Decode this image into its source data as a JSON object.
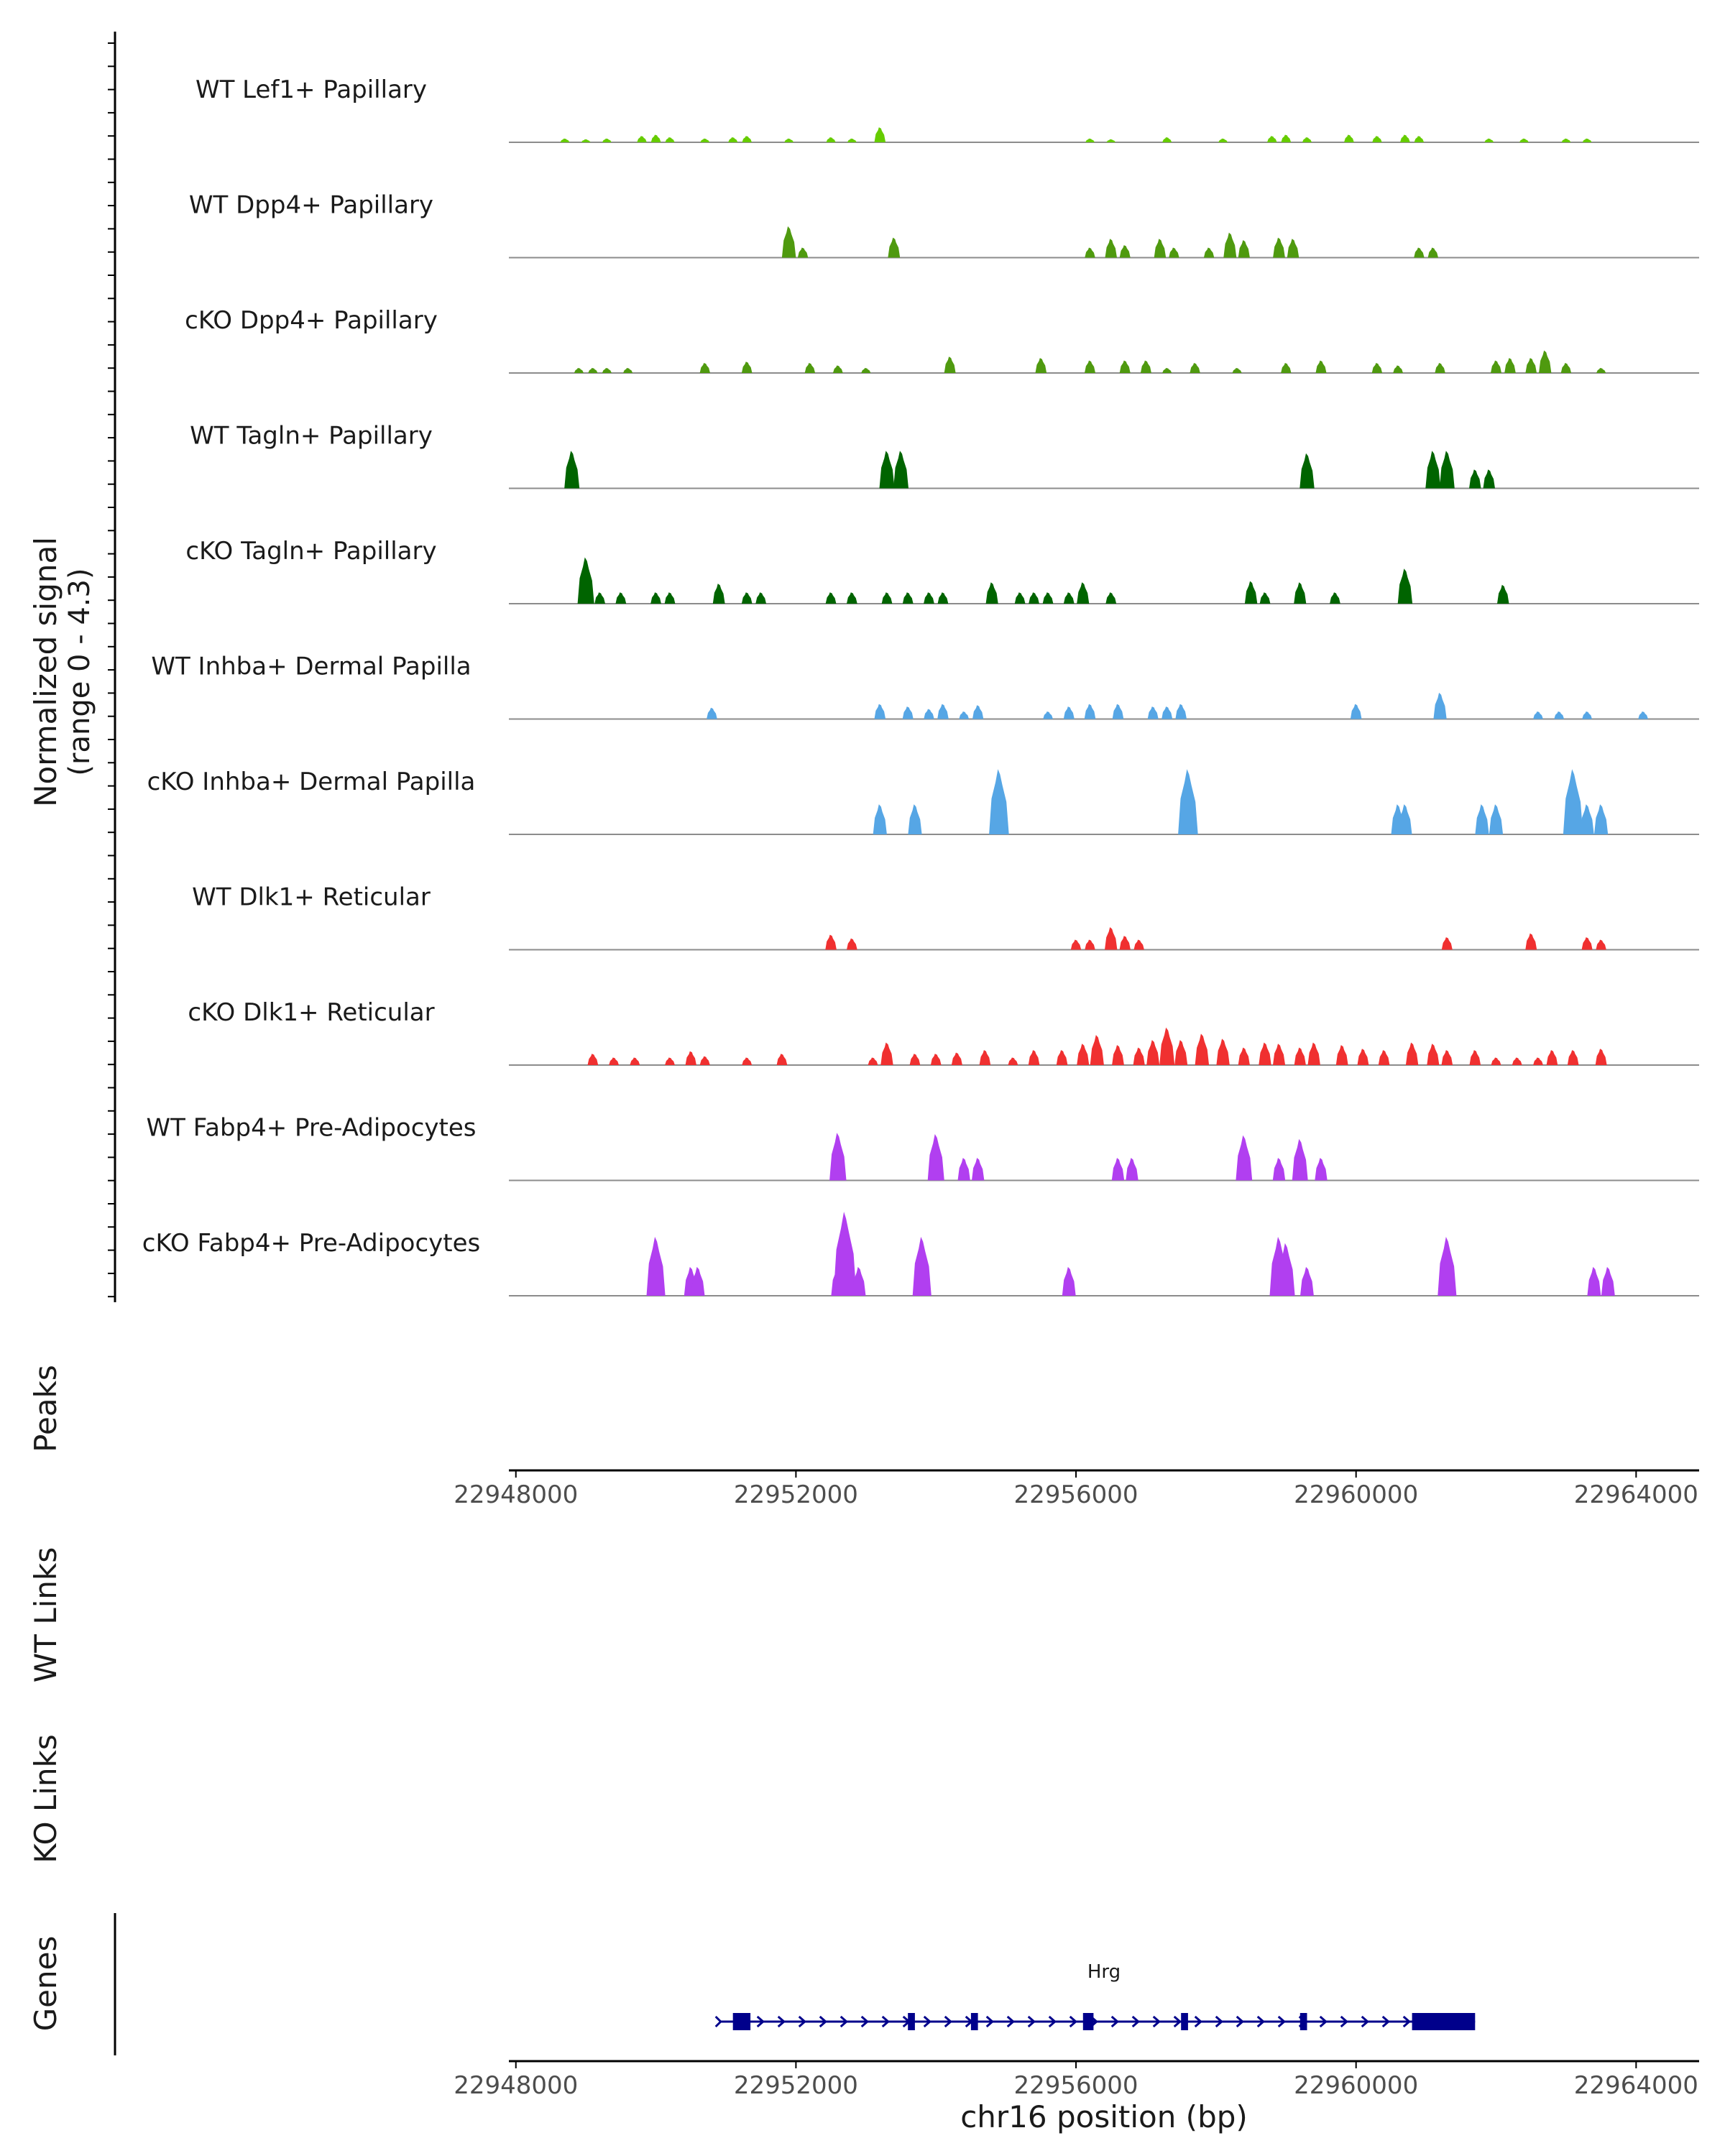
{
  "chart_data": {
    "type": "area",
    "title": "",
    "ylabel": "Normalized signal\n(range 0 - 4.3)",
    "xlabel": "chr16 position (bp)",
    "xlim": [
      22947900,
      22964900
    ],
    "ylim": [
      0,
      4.3
    ],
    "x_ticks": [
      {
        "value": 22948000,
        "label": "22948000"
      },
      {
        "value": 22952000,
        "label": "22952000"
      },
      {
        "value": 22956000,
        "label": "22956000"
      },
      {
        "value": 22960000,
        "label": "22960000"
      },
      {
        "value": 22964000,
        "label": "22964000"
      }
    ],
    "tracks": [
      {
        "name": "WT Lef1+ Papillary",
        "color": "#66cc00",
        "peaks": [
          [
            22948700,
            0.15
          ],
          [
            22949000,
            0.12
          ],
          [
            22949300,
            0.15
          ],
          [
            22949800,
            0.25
          ],
          [
            22950000,
            0.3
          ],
          [
            22950200,
            0.2
          ],
          [
            22950700,
            0.15
          ],
          [
            22951100,
            0.2
          ],
          [
            22951300,
            0.25
          ],
          [
            22951900,
            0.15
          ],
          [
            22952500,
            0.2
          ],
          [
            22952800,
            0.15
          ],
          [
            22953200,
            0.6
          ],
          [
            22956200,
            0.15
          ],
          [
            22956500,
            0.12
          ],
          [
            22957300,
            0.2
          ],
          [
            22958100,
            0.15
          ],
          [
            22958800,
            0.25
          ],
          [
            22959000,
            0.3
          ],
          [
            22959300,
            0.2
          ],
          [
            22959900,
            0.3
          ],
          [
            22960300,
            0.25
          ],
          [
            22960700,
            0.3
          ],
          [
            22960900,
            0.25
          ],
          [
            22961900,
            0.15
          ],
          [
            22962400,
            0.15
          ],
          [
            22963000,
            0.15
          ],
          [
            22963300,
            0.15
          ]
        ]
      },
      {
        "name": "WT Dpp4+ Papillary",
        "color": "#4f9a0f",
        "peaks": [
          [
            22951900,
            1.25
          ],
          [
            22952100,
            0.4
          ],
          [
            22953400,
            0.8
          ],
          [
            22956200,
            0.4
          ],
          [
            22956500,
            0.75
          ],
          [
            22956700,
            0.5
          ],
          [
            22957200,
            0.75
          ],
          [
            22957400,
            0.4
          ],
          [
            22957900,
            0.4
          ],
          [
            22958200,
            1.0
          ],
          [
            22958400,
            0.7
          ],
          [
            22958900,
            0.8
          ],
          [
            22959100,
            0.75
          ],
          [
            22960900,
            0.4
          ],
          [
            22961100,
            0.4
          ]
        ]
      },
      {
        "name": "cKO Dpp4+ Papillary",
        "color": "#4f9a0f",
        "peaks": [
          [
            22948900,
            0.2
          ],
          [
            22949100,
            0.2
          ],
          [
            22949300,
            0.2
          ],
          [
            22949600,
            0.2
          ],
          [
            22950700,
            0.4
          ],
          [
            22951300,
            0.45
          ],
          [
            22952200,
            0.4
          ],
          [
            22952600,
            0.3
          ],
          [
            22953000,
            0.2
          ],
          [
            22954200,
            0.65
          ],
          [
            22955500,
            0.6
          ],
          [
            22956200,
            0.5
          ],
          [
            22956700,
            0.5
          ],
          [
            22957000,
            0.5
          ],
          [
            22957300,
            0.2
          ],
          [
            22957700,
            0.4
          ],
          [
            22958300,
            0.2
          ],
          [
            22959000,
            0.4
          ],
          [
            22959500,
            0.5
          ],
          [
            22960300,
            0.4
          ],
          [
            22960600,
            0.3
          ],
          [
            22961200,
            0.4
          ],
          [
            22962000,
            0.5
          ],
          [
            22962200,
            0.6
          ],
          [
            22962500,
            0.6
          ],
          [
            22962700,
            0.9
          ],
          [
            22963000,
            0.4
          ],
          [
            22963500,
            0.2
          ]
        ]
      },
      {
        "name": "WT Tagln+ Papillary",
        "color": "#006400",
        "peaks": [
          [
            22948800,
            1.5
          ],
          [
            22953300,
            1.5
          ],
          [
            22953500,
            1.5
          ],
          [
            22959300,
            1.4
          ],
          [
            22961100,
            1.5
          ],
          [
            22961300,
            1.5
          ],
          [
            22961700,
            0.75
          ],
          [
            22961900,
            0.75
          ]
        ]
      },
      {
        "name": "cKO Tagln+ Papillary",
        "color": "#006400",
        "peaks": [
          [
            22949000,
            1.85
          ],
          [
            22949200,
            0.45
          ],
          [
            22949500,
            0.45
          ],
          [
            22950000,
            0.45
          ],
          [
            22950200,
            0.45
          ],
          [
            22950900,
            0.8
          ],
          [
            22951300,
            0.45
          ],
          [
            22951500,
            0.45
          ],
          [
            22952500,
            0.45
          ],
          [
            22952800,
            0.45
          ],
          [
            22953300,
            0.45
          ],
          [
            22953600,
            0.45
          ],
          [
            22953900,
            0.45
          ],
          [
            22954100,
            0.45
          ],
          [
            22954800,
            0.85
          ],
          [
            22955200,
            0.45
          ],
          [
            22955400,
            0.45
          ],
          [
            22955600,
            0.45
          ],
          [
            22955900,
            0.45
          ],
          [
            22956100,
            0.85
          ],
          [
            22956500,
            0.45
          ],
          [
            22958500,
            0.9
          ],
          [
            22958700,
            0.45
          ],
          [
            22959200,
            0.85
          ],
          [
            22959700,
            0.45
          ],
          [
            22960700,
            1.4
          ],
          [
            22962100,
            0.75
          ]
        ]
      },
      {
        "name": "WT Inhba+ Dermal Papilla",
        "color": "#56a6e5",
        "peaks": [
          [
            22950800,
            0.45
          ],
          [
            22953200,
            0.6
          ],
          [
            22953600,
            0.5
          ],
          [
            22953900,
            0.4
          ],
          [
            22954100,
            0.6
          ],
          [
            22954400,
            0.3
          ],
          [
            22954600,
            0.55
          ],
          [
            22955600,
            0.3
          ],
          [
            22955900,
            0.5
          ],
          [
            22956200,
            0.6
          ],
          [
            22956600,
            0.6
          ],
          [
            22957100,
            0.5
          ],
          [
            22957300,
            0.5
          ],
          [
            22957500,
            0.6
          ],
          [
            22960000,
            0.6
          ],
          [
            22961200,
            1.05
          ],
          [
            22962600,
            0.3
          ],
          [
            22962900,
            0.3
          ],
          [
            22963300,
            0.3
          ],
          [
            22964100,
            0.3
          ]
        ]
      },
      {
        "name": "cKO Inhba+ Dermal Papilla",
        "color": "#56a6e5",
        "peaks": [
          [
            22953200,
            1.2
          ],
          [
            22953700,
            1.2
          ],
          [
            22954900,
            2.6
          ],
          [
            22957600,
            2.6
          ],
          [
            22960600,
            1.2
          ],
          [
            22960700,
            1.2
          ],
          [
            22961800,
            1.2
          ],
          [
            22962000,
            1.2
          ],
          [
            22963100,
            2.6
          ],
          [
            22963300,
            1.2
          ],
          [
            22963500,
            1.2
          ]
        ]
      },
      {
        "name": "WT Dlk1+ Reticular",
        "color": "#f03030",
        "peaks": [
          [
            22952500,
            0.6
          ],
          [
            22952800,
            0.45
          ],
          [
            22956000,
            0.4
          ],
          [
            22956200,
            0.4
          ],
          [
            22956500,
            0.9
          ],
          [
            22956700,
            0.55
          ],
          [
            22956900,
            0.4
          ],
          [
            22961300,
            0.5
          ],
          [
            22962500,
            0.65
          ],
          [
            22963300,
            0.5
          ],
          [
            22963500,
            0.4
          ]
        ]
      },
      {
        "name": "cKO Dlk1+ Reticular",
        "color": "#f03030",
        "peaks": [
          [
            22949100,
            0.45
          ],
          [
            22949400,
            0.3
          ],
          [
            22949700,
            0.3
          ],
          [
            22950200,
            0.3
          ],
          [
            22950500,
            0.55
          ],
          [
            22950700,
            0.35
          ],
          [
            22951300,
            0.3
          ],
          [
            22951800,
            0.45
          ],
          [
            22953100,
            0.3
          ],
          [
            22953300,
            0.9
          ],
          [
            22953700,
            0.45
          ],
          [
            22954000,
            0.45
          ],
          [
            22954300,
            0.5
          ],
          [
            22954700,
            0.6
          ],
          [
            22955100,
            0.3
          ],
          [
            22955400,
            0.6
          ],
          [
            22955800,
            0.6
          ],
          [
            22956100,
            0.85
          ],
          [
            22956300,
            1.2
          ],
          [
            22956600,
            0.8
          ],
          [
            22956900,
            0.7
          ],
          [
            22957100,
            1.0
          ],
          [
            22957300,
            1.5
          ],
          [
            22957500,
            1.0
          ],
          [
            22957800,
            1.25
          ],
          [
            22958100,
            1.05
          ],
          [
            22958400,
            0.7
          ],
          [
            22958700,
            0.9
          ],
          [
            22958900,
            0.85
          ],
          [
            22959200,
            0.7
          ],
          [
            22959400,
            0.9
          ],
          [
            22959800,
            0.8
          ],
          [
            22960100,
            0.65
          ],
          [
            22960400,
            0.6
          ],
          [
            22960800,
            0.9
          ],
          [
            22961100,
            0.85
          ],
          [
            22961300,
            0.6
          ],
          [
            22961700,
            0.6
          ],
          [
            22962000,
            0.3
          ],
          [
            22962300,
            0.3
          ],
          [
            22962600,
            0.3
          ],
          [
            22962800,
            0.6
          ],
          [
            22963100,
            0.6
          ],
          [
            22963500,
            0.65
          ]
        ]
      },
      {
        "name": "WT Fabp4+ Pre-Adipocytes",
        "color": "#b13ff0",
        "peaks": [
          [
            22952600,
            1.9
          ],
          [
            22954000,
            1.85
          ],
          [
            22954400,
            0.9
          ],
          [
            22954600,
            0.9
          ],
          [
            22956600,
            0.9
          ],
          [
            22956800,
            0.9
          ],
          [
            22958400,
            1.8
          ],
          [
            22958900,
            0.9
          ],
          [
            22959200,
            1.65
          ],
          [
            22959500,
            0.9
          ]
        ]
      },
      {
        "name": "cKO Fabp4+ Pre-Adipocytes",
        "color": "#b13ff0",
        "peaks": [
          [
            22950000,
            2.35
          ],
          [
            22950500,
            1.15
          ],
          [
            22950600,
            1.15
          ],
          [
            22952600,
            1.15
          ],
          [
            22952700,
            3.35
          ],
          [
            22952900,
            1.15
          ],
          [
            22953800,
            2.35
          ],
          [
            22955900,
            1.15
          ],
          [
            22958900,
            2.35
          ],
          [
            22959000,
            2.1
          ],
          [
            22959300,
            1.15
          ],
          [
            22961300,
            2.35
          ],
          [
            22963400,
            1.15
          ],
          [
            22963600,
            1.15
          ]
        ]
      }
    ],
    "panels": {
      "peaks_label": "Peaks",
      "wt_links_label": "WT Links",
      "ko_links_label": "KO Links",
      "genes_label": "Genes"
    },
    "gene": {
      "name": "Hrg",
      "start": 22951100,
      "end": 22961700,
      "strand": "+",
      "exons": [
        [
          22951100,
          22951350
        ],
        [
          22953600,
          22953700
        ],
        [
          22954500,
          22954600
        ],
        [
          22956100,
          22956250
        ],
        [
          22957500,
          22957600
        ],
        [
          22959200,
          22959300
        ],
        [
          22960800,
          22961700
        ]
      ]
    },
    "colors": {
      "axis": "#000000",
      "baseline": "#8c8c8c",
      "gene": "#00008b"
    }
  }
}
